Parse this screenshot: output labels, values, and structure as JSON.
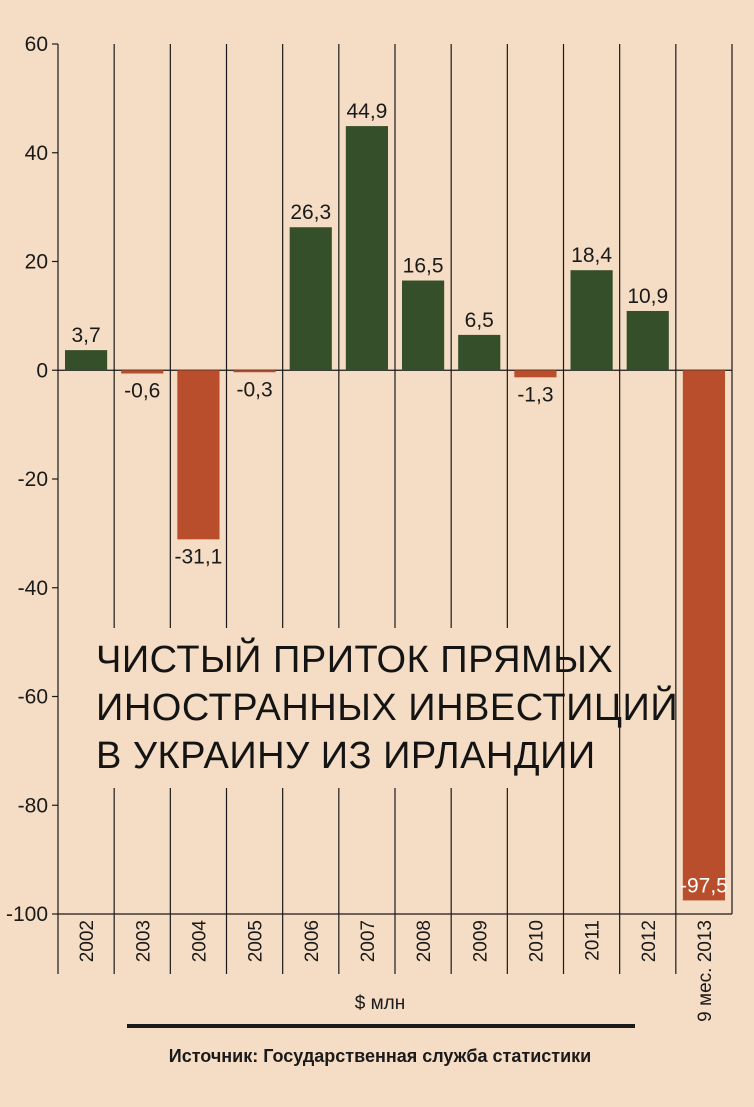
{
  "chart_data": {
    "type": "bar",
    "title_lines": [
      "ЧИСТЫЙ ПРИТОК ПРЯМЫХ",
      "ИНОСТРАННЫХ ИНВЕСТИЦИЙ",
      "В УКРАИНУ ИЗ ИРЛАНДИИ"
    ],
    "unit_label": "$ млн",
    "source": "Источник: Государственная служба статистики",
    "categories": [
      "2002",
      "2003",
      "2004",
      "2005",
      "2006",
      "2007",
      "2008",
      "2009",
      "2010",
      "2011",
      "2012",
      "9 мес. 2013"
    ],
    "values": [
      3.7,
      -0.6,
      -31.1,
      -0.3,
      26.3,
      44.9,
      16.5,
      6.5,
      -1.3,
      18.4,
      10.9,
      -97.5
    ],
    "value_labels": [
      "3,7",
      "-0,6",
      "-31,1",
      "-0,3",
      "26,3",
      "44,9",
      "16,5",
      "6,5",
      "-1,3",
      "18,4",
      "10,9",
      "-97,5"
    ],
    "ylim": [
      -100,
      60
    ],
    "yticks": [
      "60",
      "40",
      "20",
      "0",
      "-20",
      "-40",
      "-60",
      "-80",
      "-100"
    ],
    "grid": "vertical separators",
    "colors": {
      "positive": "#344f2a",
      "negative": "#b84e2c",
      "background": "#f5dcc4",
      "axis": "#1a1a1a"
    }
  }
}
